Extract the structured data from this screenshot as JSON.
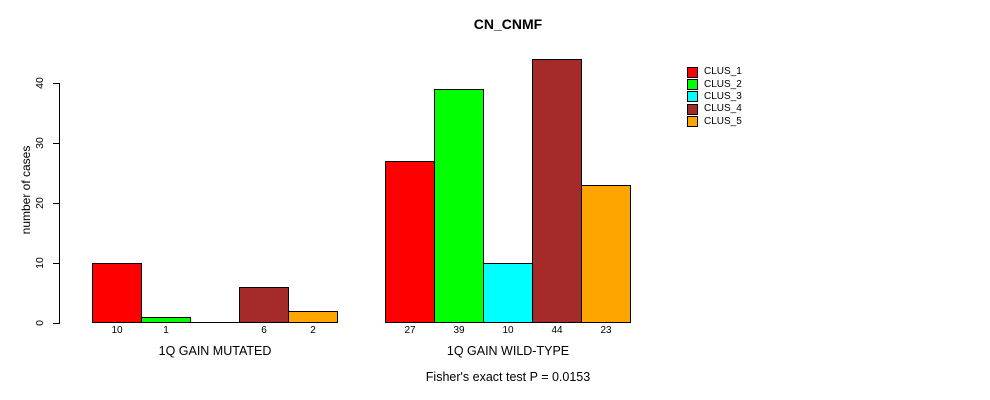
{
  "chart_data": {
    "type": "bar",
    "title": "CN_CNMF",
    "ylabel": "number of cases",
    "ylim": [
      0,
      44
    ],
    "yticks": [
      0,
      10,
      20,
      30,
      40
    ],
    "grid": false,
    "legend_position": "right-outside",
    "series": [
      {
        "name": "CLUS_1",
        "color": "#FF0000"
      },
      {
        "name": "CLUS_2",
        "color": "#00FF00"
      },
      {
        "name": "CLUS_3",
        "color": "#00FFFF"
      },
      {
        "name": "CLUS_4",
        "color": "#A52A2A"
      },
      {
        "name": "CLUS_5",
        "color": "#FFA500"
      }
    ],
    "groups": [
      {
        "label": "1Q GAIN MUTATED",
        "values": [
          10,
          1,
          0,
          6,
          2
        ],
        "bar_labels": [
          "10",
          "1",
          "",
          "6",
          "2"
        ]
      },
      {
        "label": "1Q GAIN WILD-TYPE",
        "values": [
          27,
          39,
          10,
          44,
          23
        ],
        "bar_labels": [
          "27",
          "39",
          "10",
          "44",
          "23"
        ]
      }
    ],
    "annotation": "Fisher's exact test P = 0.0153"
  }
}
